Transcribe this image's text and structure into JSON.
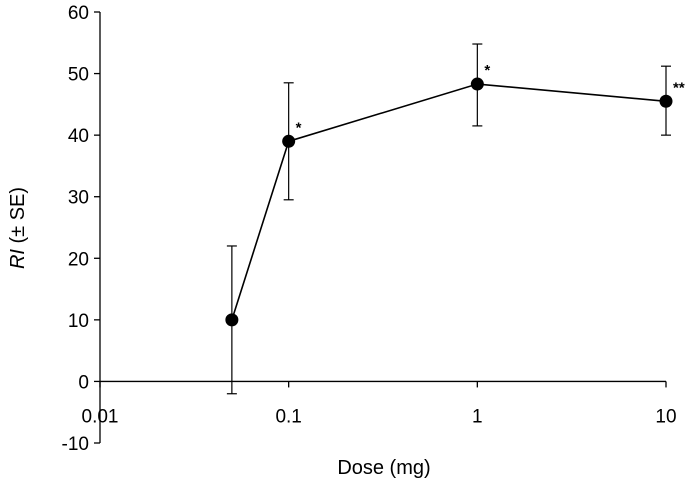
{
  "chart_data": {
    "type": "scatter",
    "title": "",
    "xlabel": "Dose (mg)",
    "ylabel_italic": "RI",
    "ylabel_rest": " (± SE)",
    "xscale": "log",
    "xlim": [
      0.01,
      10
    ],
    "ylim": [
      -10,
      60
    ],
    "xticks": [
      0.01,
      0.1,
      1,
      10
    ],
    "xtick_labels": [
      "0.01",
      "0.1",
      "1",
      "10"
    ],
    "yticks": [
      -10,
      0,
      10,
      20,
      30,
      40,
      50,
      60
    ],
    "ytick_labels": [
      "-10",
      "0",
      "10",
      "20",
      "30",
      "40",
      "50",
      "60"
    ],
    "grid": false,
    "series": [
      {
        "x": [
          0.05,
          0.1,
          1,
          10
        ],
        "y": [
          10,
          39,
          48.3,
          45.5
        ],
        "err_low": [
          -2,
          29.5,
          41.5,
          40
        ],
        "err_high": [
          22,
          48.5,
          54.8,
          51.2
        ],
        "annotations": [
          "",
          "*",
          "*",
          "**"
        ]
      }
    ],
    "colors": {
      "line": "#000000",
      "marker": "#000000"
    }
  }
}
